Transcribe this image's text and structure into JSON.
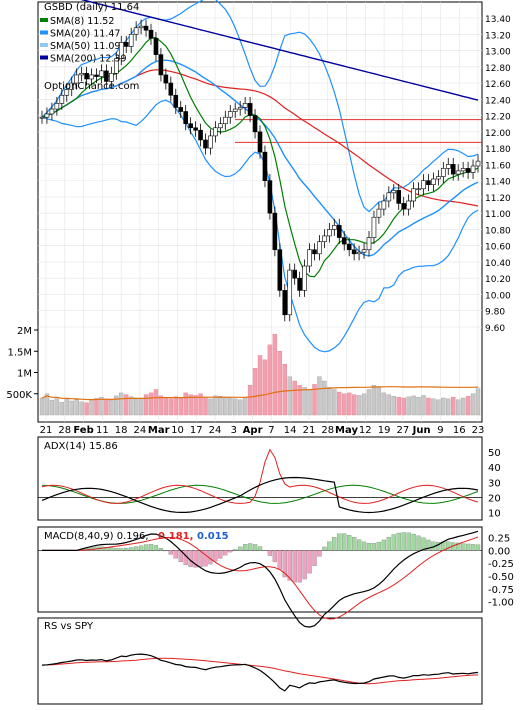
{
  "chart_data": [
    {
      "type": "line",
      "title": "GSBD (daily) 11.64",
      "watermark": "OptionChance.com",
      "ylim": [
        9.5,
        13.5
      ],
      "y_ticks": [
        "13.40",
        "13.20",
        "13.00",
        "12.80",
        "12.60",
        "12.40",
        "12.20",
        "12.00",
        "11.80",
        "11.60",
        "11.40",
        "11.20",
        "11.00",
        "10.80",
        "10.60",
        "10.40",
        "10.20",
        "10.00",
        "9.80",
        "9.60"
      ],
      "x_ticks": [
        "21",
        "28",
        "Feb",
        "11",
        "18",
        "24",
        "Mar",
        "10",
        "17",
        "24",
        "3",
        "Apr",
        "7",
        "14",
        "21",
        "28",
        "May",
        "12",
        "19",
        "27",
        "Jun",
        "9",
        "16",
        "23"
      ],
      "volume_ticks": [
        "2M",
        "1.5M",
        "1M",
        "500K"
      ],
      "legend": [
        {
          "label": "SMA(8)",
          "value": "11.52",
          "color": "#008000"
        },
        {
          "label": "SMA(20)",
          "value": "11.47",
          "color": "#1f90ff"
        },
        {
          "label": "SMA(50)",
          "value": "11.09",
          "color": "#90c8f0"
        },
        {
          "label": "SMA(200)",
          "value": "12.39",
          "color": "#0000a0"
        }
      ],
      "close": [
        12.18,
        12.22,
        12.28,
        12.35,
        12.45,
        12.52,
        12.6,
        12.7,
        12.72,
        12.65,
        12.7,
        12.68,
        12.75,
        12.62,
        12.72,
        12.9,
        13.1,
        13.05,
        13.2,
        13.28,
        13.3,
        13.25,
        13.15,
        12.95,
        12.7,
        12.6,
        12.45,
        12.3,
        12.25,
        12.1,
        12.05,
        12.02,
        11.9,
        11.8,
        11.95,
        12.05,
        12.1,
        12.18,
        12.25,
        12.28,
        12.3,
        12.35,
        12.2,
        12.0,
        11.75,
        11.4,
        11.0,
        10.55,
        10.05,
        9.75,
        10.3,
        10.2,
        10.05,
        10.35,
        10.55,
        10.5,
        10.65,
        10.72,
        10.8,
        10.85,
        10.7,
        10.62,
        10.55,
        10.5,
        10.52,
        10.55,
        10.7,
        10.95,
        11.05,
        11.15,
        11.25,
        11.28,
        11.12,
        11.05,
        11.15,
        11.3,
        11.3,
        11.4,
        11.35,
        11.42,
        11.45,
        11.55,
        11.6,
        11.48,
        11.52,
        11.55,
        11.5,
        11.58,
        11.64
      ],
      "volume": [
        400,
        500,
        350,
        420,
        300,
        380,
        330,
        360,
        310,
        290,
        340,
        390,
        420,
        380,
        350,
        450,
        520,
        480,
        430,
        400,
        380,
        480,
        520,
        600,
        450,
        420,
        380,
        430,
        400,
        520,
        480,
        460,
        500,
        420,
        380,
        450,
        440,
        410,
        400,
        380,
        360,
        420,
        700,
        1100,
        1400,
        1300,
        1650,
        1900,
        1500,
        1200,
        900,
        800,
        700,
        650,
        600,
        720,
        900,
        800,
        650,
        600,
        540,
        500,
        520,
        480,
        460,
        500,
        600,
        700,
        650,
        520,
        480,
        440,
        420,
        400,
        430,
        450,
        420,
        460,
        400,
        380,
        360,
        400,
        380,
        420,
        360,
        400,
        440,
        500,
        620
      ],
      "volume_max_tick": 2000
    },
    {
      "type": "line",
      "title": "ADX(14) 15.86",
      "ylim": [
        5,
        60
      ],
      "y_ticks": [
        "50",
        "40",
        "30",
        "20",
        "10"
      ]
    },
    {
      "type": "line",
      "title": "MACD(8,40,9) 0.196,",
      "value_a": "0.181,",
      "value_b": "0.015",
      "ylim": [
        -1.2,
        0.3
      ],
      "y_ticks": [
        "0.25",
        "0.00",
        "-0.25",
        "-0.50",
        "-0.75",
        "-1.00"
      ]
    },
    {
      "type": "line",
      "title": "RS vs SPY"
    }
  ]
}
